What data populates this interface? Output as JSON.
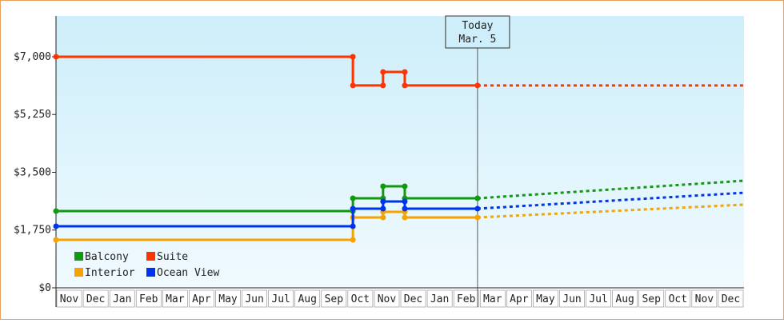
{
  "chart_data": {
    "type": "line",
    "categories": [
      "Nov",
      "Dec",
      "Jan",
      "Feb",
      "Mar",
      "Apr",
      "May",
      "Jun",
      "Jul",
      "Aug",
      "Sep",
      "Oct",
      "Nov",
      "Dec",
      "Jan",
      "Feb",
      "Mar",
      "Apr",
      "May",
      "Jun",
      "Jul",
      "Aug",
      "Sep",
      "Oct",
      "Nov",
      "Dec"
    ],
    "xlim": [
      0,
      26
    ],
    "ylim": [
      0,
      8235
    ],
    "yticks": [
      {
        "value": 0,
        "label": "$0"
      },
      {
        "value": 1750,
        "label": "$1,750"
      },
      {
        "value": 3500,
        "label": "$3,500"
      },
      {
        "value": 5250,
        "label": "$5,250"
      },
      {
        "value": 7000,
        "label": "$7,000"
      }
    ],
    "legend": "lower-left",
    "annotation": {
      "x": 15.93,
      "lines": [
        "Today",
        "Mar. 5"
      ]
    },
    "series": [
      {
        "name": "Balcony",
        "color": "#119911",
        "x": [
          0,
          11.22,
          11.22,
          12.36,
          12.36,
          13.18,
          13.18,
          15.93
        ],
        "values": [
          2325,
          2325,
          2713,
          2713,
          3076,
          3076,
          2713,
          2713
        ],
        "forecast": {
          "x": [
            15.93,
            26
          ],
          "values": [
            2713,
            3245
          ]
        }
      },
      {
        "name": "Suite",
        "color": "#ff3300",
        "x": [
          0,
          11.22,
          11.22,
          12.36,
          12.36,
          13.18,
          13.18,
          15.93
        ],
        "values": [
          7000,
          7000,
          6130,
          6130,
          6540,
          6540,
          6130,
          6130
        ],
        "forecast": {
          "x": [
            15.93,
            26
          ],
          "values": [
            6130,
            6130
          ]
        }
      },
      {
        "name": "Interior",
        "color": "#f5a300",
        "x": [
          0,
          11.22,
          11.22,
          12.36,
          12.36,
          13.18,
          13.18,
          15.93
        ],
        "values": [
          1453,
          1453,
          2131,
          2131,
          2300,
          2300,
          2131,
          2131
        ],
        "forecast": {
          "x": [
            15.93,
            26
          ],
          "values": [
            2131,
            2520
          ]
        }
      },
      {
        "name": "Ocean View",
        "color": "#0033ee",
        "x": [
          0,
          11.22,
          11.22,
          12.36,
          12.36,
          13.18,
          13.18,
          15.93
        ],
        "values": [
          1865,
          1865,
          2398,
          2398,
          2616,
          2616,
          2398,
          2398
        ],
        "forecast": {
          "x": [
            15.93,
            26
          ],
          "values": [
            2398,
            2880
          ]
        }
      }
    ]
  }
}
